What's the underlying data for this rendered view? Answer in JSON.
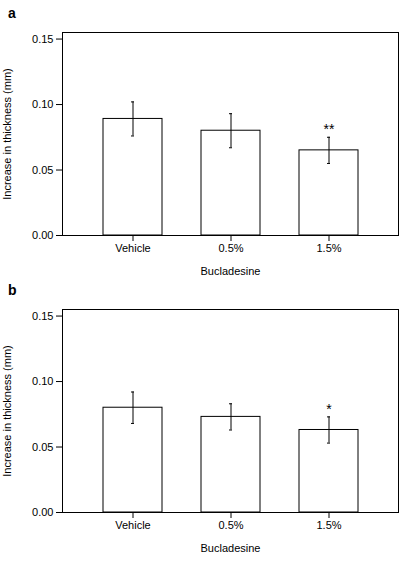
{
  "chart_data": [
    {
      "type": "bar",
      "title": "a",
      "categories": [
        "Vehicle",
        "0.5%",
        "1.5%"
      ],
      "values": [
        0.089,
        0.08,
        0.065
      ],
      "errors": [
        0.013,
        0.013,
        0.01
      ],
      "annotations": [
        {
          "category": "1.5%",
          "text": "**"
        }
      ],
      "xlabel": "Bucladesine",
      "ylabel": "Increase in thickness (mm)",
      "color": "#ffffff",
      "ylim": [
        0.0,
        0.155
      ],
      "yticks": [
        {
          "value": 0.0,
          "label": "0.00"
        },
        {
          "value": 0.05,
          "label": "0.05"
        },
        {
          "value": 0.1,
          "label": "0.10"
        },
        {
          "value": 0.15,
          "label": "0.15"
        }
      ]
    },
    {
      "type": "bar",
      "title": "b",
      "categories": [
        "Vehicle",
        "0.5%",
        "1.5%"
      ],
      "values": [
        0.08,
        0.073,
        0.063
      ],
      "errors": [
        0.012,
        0.01,
        0.01
      ],
      "annotations": [
        {
          "category": "1.5%",
          "text": "*"
        }
      ],
      "xlabel": "Bucladesine",
      "ylabel": "Increase in thickness (mm)",
      "color": "#ffffff",
      "ylim": [
        0.0,
        0.155
      ],
      "yticks": [
        {
          "value": 0.0,
          "label": "0.00"
        },
        {
          "value": 0.05,
          "label": "0.05"
        },
        {
          "value": 0.1,
          "label": "0.10"
        },
        {
          "value": 0.15,
          "label": "0.15"
        }
      ]
    }
  ]
}
